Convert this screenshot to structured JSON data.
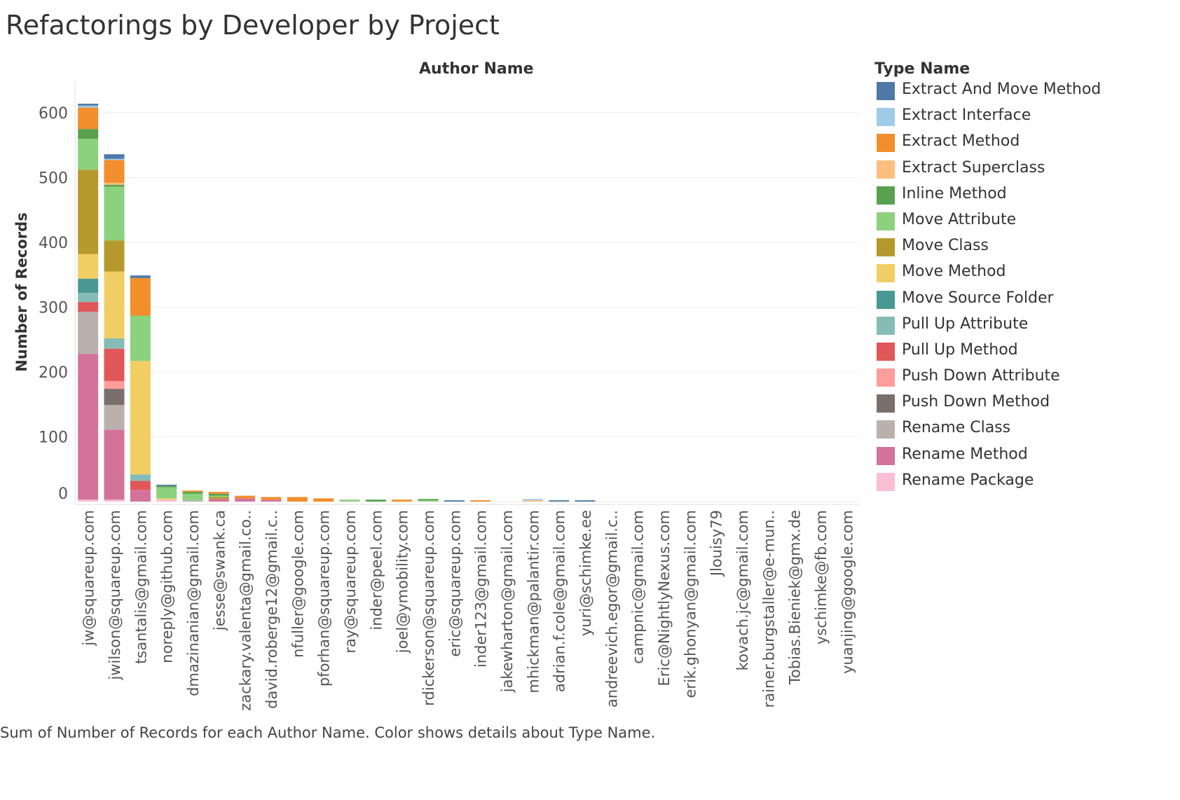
{
  "page": {
    "title": "Refactorings by Developer by Project",
    "column_header": "Author Name",
    "footnote": "Sum of Number of Records for each Author Name.  Color shows details about Type Name."
  },
  "chart_data": {
    "type": "bar",
    "stacked": true,
    "title": "Refactorings by Developer by Project",
    "xlabel": "Author Name",
    "ylabel": "Number of Records",
    "ylim": [
      0,
      620
    ],
    "yticks": [
      0,
      100,
      200,
      300,
      400,
      500,
      600
    ],
    "grid": true,
    "legend": {
      "title": "Type Name",
      "placement": "right"
    },
    "categories": [
      "jw@squareup.com",
      "jwilson@squareup.com",
      "tsantalis@gmail.com",
      "noreply@github.com",
      "dmazinanian@gmail.com",
      "jesse@swank.ca",
      "zackary.valenta@gmail.co..",
      "david.roberge12@gmail.c..",
      "nfuller@google.com",
      "pforhan@squareup.com",
      "ray@squareup.com",
      "inder@peel.com",
      "joel@ymobility.com",
      "rdickerson@squareup.com",
      "eric@squareup.com",
      "inder123@gmail.com",
      "jakewharton@gmail.com",
      "mhickman@palantir.com",
      "adrian.f.cole@gmail.com",
      "yuri@schimke.ee",
      "andreevich.egor@gmail.c..",
      "campnic@gmail.com",
      "Eric@NightlyNexus.com",
      "erik.ghonyan@gmail.com",
      "Jlouisy79",
      "kovach.jc@gmail.com",
      "rainer.burgstaller@e-mun..",
      "Tobias.Bieniek@gmx.de",
      "yschimke@fb.com",
      "yuanjing@google.com"
    ],
    "series": [
      {
        "name": "Rename Package",
        "color": "#FABFD2",
        "values": [
          3,
          3,
          0,
          3,
          0,
          0,
          0,
          0,
          0,
          0,
          0,
          0,
          0,
          0,
          0,
          0,
          0,
          0,
          0,
          0,
          0,
          0,
          0,
          0,
          0,
          0,
          0,
          0,
          0,
          0
        ]
      },
      {
        "name": "Rename Method",
        "color": "#D4739A",
        "values": [
          225,
          108,
          18,
          0,
          0,
          4,
          5,
          3,
          0,
          0,
          0,
          0,
          0,
          0,
          0,
          0,
          0,
          0,
          0,
          0,
          0,
          0,
          0,
          0,
          0,
          0,
          0,
          0,
          0,
          0
        ]
      },
      {
        "name": "Rename Class",
        "color": "#BAB0AC",
        "values": [
          65,
          38,
          0,
          0,
          2,
          0,
          0,
          0,
          0,
          0,
          0,
          0,
          0,
          0,
          0,
          0,
          0,
          0,
          0,
          0,
          0,
          0,
          0,
          0,
          0,
          0,
          0,
          0,
          0,
          0
        ]
      },
      {
        "name": "Push Down Method",
        "color": "#79706E",
        "values": [
          0,
          25,
          0,
          0,
          0,
          0,
          0,
          0,
          0,
          0,
          0,
          0,
          0,
          0,
          0,
          0,
          0,
          0,
          0,
          0,
          0,
          0,
          0,
          0,
          0,
          0,
          0,
          0,
          0,
          0
        ]
      },
      {
        "name": "Push Down Attribute",
        "color": "#FF9D9A",
        "values": [
          0,
          12,
          0,
          0,
          0,
          0,
          0,
          0,
          0,
          0,
          0,
          0,
          0,
          0,
          0,
          0,
          0,
          0,
          0,
          0,
          0,
          0,
          0,
          0,
          0,
          0,
          0,
          0,
          0,
          0
        ]
      },
      {
        "name": "Pull Up Method",
        "color": "#E15759",
        "values": [
          15,
          50,
          14,
          0,
          0,
          0,
          0,
          0,
          0,
          0,
          0,
          0,
          0,
          0,
          0,
          0,
          0,
          0,
          0,
          0,
          0,
          0,
          0,
          0,
          0,
          0,
          0,
          0,
          0,
          0
        ]
      },
      {
        "name": "Pull Up Attribute",
        "color": "#86BCB6",
        "values": [
          14,
          16,
          10,
          0,
          0,
          0,
          0,
          0,
          0,
          0,
          0,
          0,
          0,
          0,
          0,
          0,
          0,
          0,
          0,
          0,
          0,
          0,
          0,
          0,
          0,
          0,
          0,
          0,
          0,
          0
        ]
      },
      {
        "name": "Move Source Folder",
        "color": "#499894",
        "values": [
          22,
          0,
          0,
          0,
          0,
          0,
          0,
          0,
          0,
          0,
          0,
          0,
          0,
          0,
          0,
          0,
          0,
          0,
          0,
          0,
          0,
          0,
          0,
          0,
          0,
          0,
          0,
          0,
          0,
          0
        ]
      },
      {
        "name": "Move Method",
        "color": "#F1CE63",
        "values": [
          38,
          103,
          175,
          2,
          0,
          0,
          0,
          0,
          0,
          0,
          0,
          0,
          0,
          0,
          0,
          0,
          0,
          0,
          0,
          0,
          0,
          0,
          0,
          0,
          0,
          0,
          0,
          0,
          0,
          0
        ]
      },
      {
        "name": "Move Class",
        "color": "#B6992D",
        "values": [
          130,
          48,
          0,
          0,
          0,
          3,
          0,
          0,
          0,
          0,
          0,
          0,
          0,
          0,
          0,
          0,
          0,
          0,
          0,
          0,
          0,
          0,
          0,
          0,
          0,
          0,
          0,
          0,
          0,
          0
        ]
      },
      {
        "name": "Move Attribute",
        "color": "#8CD17D",
        "values": [
          48,
          83,
          70,
          17,
          10,
          2,
          0,
          0,
          0,
          0,
          3,
          0,
          0,
          2,
          0,
          0,
          0,
          0,
          0,
          0,
          0,
          0,
          0,
          0,
          0,
          0,
          0,
          0,
          0,
          0
        ]
      },
      {
        "name": "Inline Method",
        "color": "#59A14F",
        "values": [
          15,
          3,
          0,
          2,
          3,
          3,
          0,
          0,
          0,
          0,
          0,
          3,
          0,
          2,
          0,
          0,
          0,
          0,
          0,
          0,
          0,
          0,
          0,
          0,
          0,
          0,
          0,
          0,
          0,
          0
        ]
      },
      {
        "name": "Extract Superclass",
        "color": "#FFBE7D",
        "values": [
          0,
          3,
          0,
          0,
          0,
          0,
          0,
          0,
          0,
          0,
          0,
          0,
          0,
          0,
          0,
          0,
          0,
          2,
          0,
          0,
          0,
          0,
          0,
          0,
          0,
          0,
          0,
          0,
          0,
          0
        ]
      },
      {
        "name": "Extract Method",
        "color": "#F28E2B",
        "values": [
          33,
          35,
          58,
          0,
          2,
          3,
          4,
          4,
          7,
          5,
          0,
          0,
          3,
          0,
          0,
          2,
          0,
          0,
          0,
          0,
          0,
          0,
          0,
          0,
          0,
          0,
          0,
          0,
          0,
          0
        ]
      },
      {
        "name": "Extract Interface",
        "color": "#A0CBE8",
        "values": [
          3,
          2,
          0,
          0,
          0,
          0,
          0,
          0,
          0,
          0,
          0,
          0,
          0,
          0,
          0,
          0,
          0,
          2,
          0,
          0,
          0,
          0,
          0,
          0,
          0,
          0,
          0,
          0,
          0,
          0
        ]
      },
      {
        "name": "Extract And Move Method",
        "color": "#4E79A7",
        "values": [
          3,
          7,
          4,
          2,
          0,
          0,
          0,
          0,
          0,
          0,
          0,
          0,
          0,
          0,
          2,
          0,
          0,
          0,
          2,
          2,
          0,
          0,
          0,
          0,
          0,
          0,
          0,
          0,
          0,
          0
        ]
      }
    ],
    "legend_order": [
      "Extract And Move Method",
      "Extract Interface",
      "Extract Method",
      "Extract Superclass",
      "Inline Method",
      "Move Attribute",
      "Move Class",
      "Move Method",
      "Move Source Folder",
      "Pull Up Attribute",
      "Pull Up Method",
      "Push Down Attribute",
      "Push Down Method",
      "Rename Class",
      "Rename Method",
      "Rename Package"
    ]
  }
}
